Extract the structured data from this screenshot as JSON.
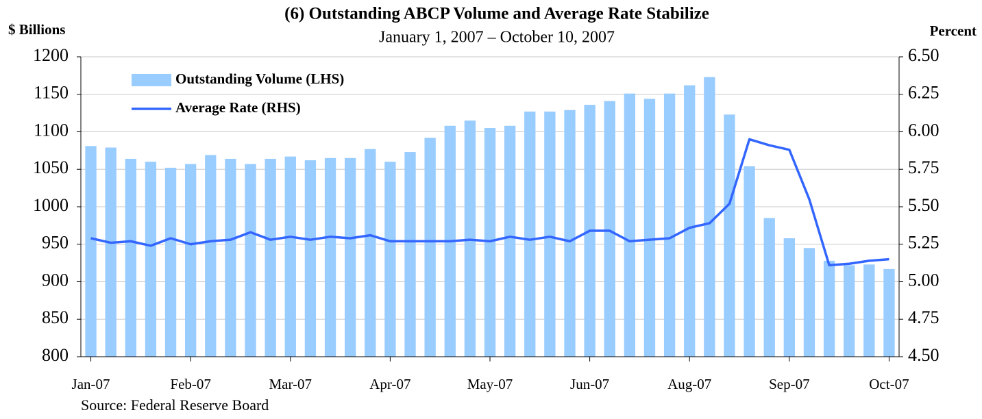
{
  "chart_data": {
    "type": "bar_line",
    "title": "(6) Outstanding ABCP Volume and Average Rate Stabilize",
    "subtitle": "January 1, 2007 – October 10, 2007",
    "y_label": "$ Billions",
    "y2_label": "Percent",
    "source": "Source: Federal Reserve Board",
    "categories": [
      "Jan-07",
      null,
      null,
      null,
      null,
      "Feb-07",
      null,
      null,
      null,
      null,
      "Mar-07",
      null,
      null,
      null,
      null,
      "Apr-07",
      null,
      null,
      null,
      null,
      "May-07",
      null,
      null,
      null,
      null,
      "Jun-07",
      null,
      null,
      null,
      null,
      "Aug-07",
      null,
      null,
      null,
      null,
      "Sep-07",
      null,
      null,
      null,
      null,
      "Oct-07"
    ],
    "series": [
      {
        "name": "Outstanding Volume (LHS)",
        "color": "#99ccff",
        "kind": "bar",
        "values": [
          1081,
          1079,
          1064,
          1060,
          1052,
          1057,
          1069,
          1064,
          1057,
          1064,
          1067,
          1062,
          1065,
          1065,
          1077,
          1060,
          1073,
          1092,
          1108,
          1115,
          1105,
          1108,
          1127,
          1127,
          1129,
          1136,
          1141,
          1151,
          1144,
          1151,
          1162,
          1173,
          1123,
          1054,
          985,
          958,
          945,
          928,
          922,
          923,
          917
        ]
      },
      {
        "name": "Average Rate (RHS)",
        "color": "#3366ff",
        "kind": "line",
        "axis": "y2",
        "values": [
          5.29,
          5.26,
          5.27,
          5.24,
          5.29,
          5.25,
          5.27,
          5.28,
          5.33,
          5.28,
          5.3,
          5.28,
          5.3,
          5.29,
          5.31,
          5.27,
          5.27,
          5.27,
          5.27,
          5.28,
          5.27,
          5.3,
          5.28,
          5.3,
          5.27,
          5.34,
          5.34,
          5.27,
          5.28,
          5.29,
          5.36,
          5.39,
          5.52,
          5.95,
          5.91,
          5.88,
          5.55,
          5.11,
          5.12,
          5.14,
          5.15
        ]
      }
    ],
    "ylim": [
      800,
      1200
    ],
    "yticks": [
      800,
      850,
      900,
      950,
      1000,
      1050,
      1100,
      1150,
      1200
    ],
    "y2lim": [
      4.5,
      6.5
    ],
    "y2ticks": [
      {
        "value": 4.5,
        "label": "4.50"
      },
      {
        "value": 4.75,
        "label": "4.75"
      },
      {
        "value": 5,
        "label": "5.00"
      },
      {
        "value": 5.25,
        "label": "5.25"
      },
      {
        "value": 5.5,
        "label": "5.50"
      },
      {
        "value": 5.75,
        "label": "5.75"
      },
      {
        "value": 6,
        "label": "6.00"
      },
      {
        "value": 6.25,
        "label": "6.25"
      },
      {
        "value": 6.5,
        "label": "6.50"
      }
    ],
    "grid": true,
    "legend": "top-left"
  }
}
